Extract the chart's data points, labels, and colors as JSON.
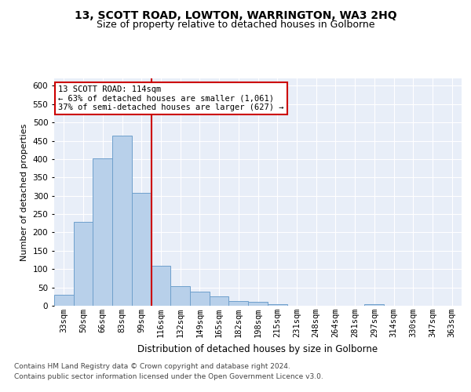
{
  "title1": "13, SCOTT ROAD, LOWTON, WARRINGTON, WA3 2HQ",
  "title2": "Size of property relative to detached houses in Golborne",
  "xlabel": "Distribution of detached houses by size in Golborne",
  "ylabel": "Number of detached properties",
  "categories": [
    "33sqm",
    "50sqm",
    "66sqm",
    "83sqm",
    "99sqm",
    "116sqm",
    "132sqm",
    "149sqm",
    "165sqm",
    "182sqm",
    "198sqm",
    "215sqm",
    "231sqm",
    "248sqm",
    "264sqm",
    "281sqm",
    "297sqm",
    "314sqm",
    "330sqm",
    "347sqm",
    "363sqm"
  ],
  "values": [
    30,
    228,
    401,
    465,
    308,
    108,
    53,
    39,
    25,
    13,
    11,
    5,
    0,
    0,
    0,
    0,
    5,
    0,
    0,
    0,
    0
  ],
  "bar_color": "#b8d0ea",
  "bar_edge_color": "#6fa0cc",
  "vline_x": 4.5,
  "vline_color": "#cc0000",
  "annotation_text": "13 SCOTT ROAD: 114sqm\n← 63% of detached houses are smaller (1,061)\n37% of semi-detached houses are larger (627) →",
  "annotation_box_color": "#ffffff",
  "annotation_box_edge": "#cc0000",
  "ylim": [
    0,
    620
  ],
  "yticks": [
    0,
    50,
    100,
    150,
    200,
    250,
    300,
    350,
    400,
    450,
    500,
    550,
    600
  ],
  "footer1": "Contains HM Land Registry data © Crown copyright and database right 2024.",
  "footer2": "Contains public sector information licensed under the Open Government Licence v3.0.",
  "bg_color": "#e8eef8",
  "fig_bg_color": "#ffffff",
  "title1_fontsize": 10,
  "title2_fontsize": 9,
  "ylabel_fontsize": 8,
  "xlabel_fontsize": 8.5,
  "tick_fontsize": 7.5,
  "footer_fontsize": 6.5
}
